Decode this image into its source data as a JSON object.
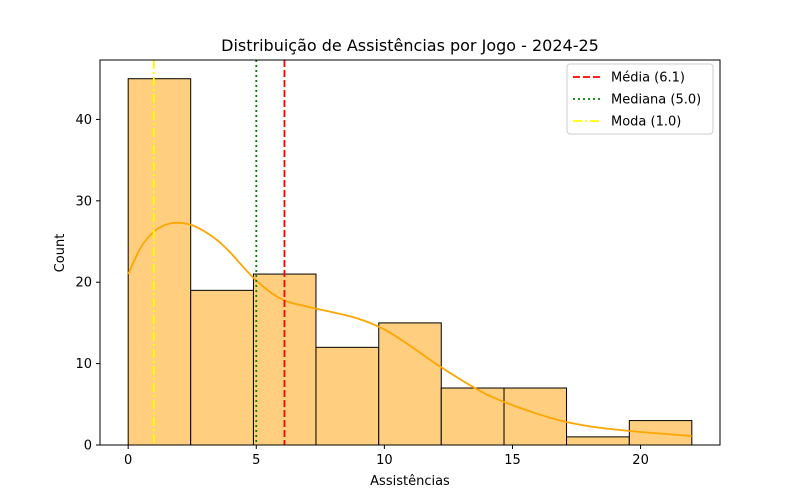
{
  "chart_data": {
    "type": "histogram",
    "title": "Distribuição de Assistências por Jogo - 2024-25",
    "xlabel": "Assistências",
    "ylabel": "Count",
    "xlim": [
      -1.1,
      23.1
    ],
    "ylim": [
      0,
      47.3
    ],
    "xticks": [
      0,
      5,
      10,
      15,
      20
    ],
    "yticks": [
      0,
      10,
      20,
      30,
      40
    ],
    "bin_edges": [
      0,
      2.44,
      4.89,
      7.33,
      9.78,
      12.22,
      14.67,
      17.11,
      19.56,
      22
    ],
    "counts": [
      45,
      19,
      21,
      12,
      15,
      7,
      7,
      1,
      3
    ],
    "bar_color": "#ffcf7f",
    "bar_edge_color": "#000000",
    "kde": {
      "color": "#ffa500",
      "x": [
        0,
        0.5,
        1,
        1.5,
        2,
        2.5,
        3,
        3.5,
        4,
        5,
        6,
        7,
        8,
        9,
        10,
        11,
        12,
        13,
        14,
        15,
        16,
        17,
        18,
        19,
        20,
        21,
        22
      ],
      "y": [
        21,
        24.3,
        26.2,
        27.1,
        27.3,
        27,
        26.2,
        25.1,
        23.6,
        20.2,
        17.9,
        17,
        16.3,
        15.5,
        14.2,
        12.2,
        10,
        8,
        6.2,
        4.9,
        3.8,
        2.9,
        2.3,
        1.9,
        1.6,
        1.35,
        1.1
      ]
    },
    "lines": [
      {
        "label": "Média (6.1)",
        "x": 6.1,
        "color": "#ff0000",
        "style": "dashed"
      },
      {
        "label": "Mediana (5.0)",
        "x": 5.0,
        "color": "#008000",
        "style": "dotted"
      },
      {
        "label": "Moda (1.0)",
        "x": 1.0,
        "color": "#ffff00",
        "style": "dashdot"
      }
    ],
    "legend_position": "top-right",
    "grid": false
  }
}
